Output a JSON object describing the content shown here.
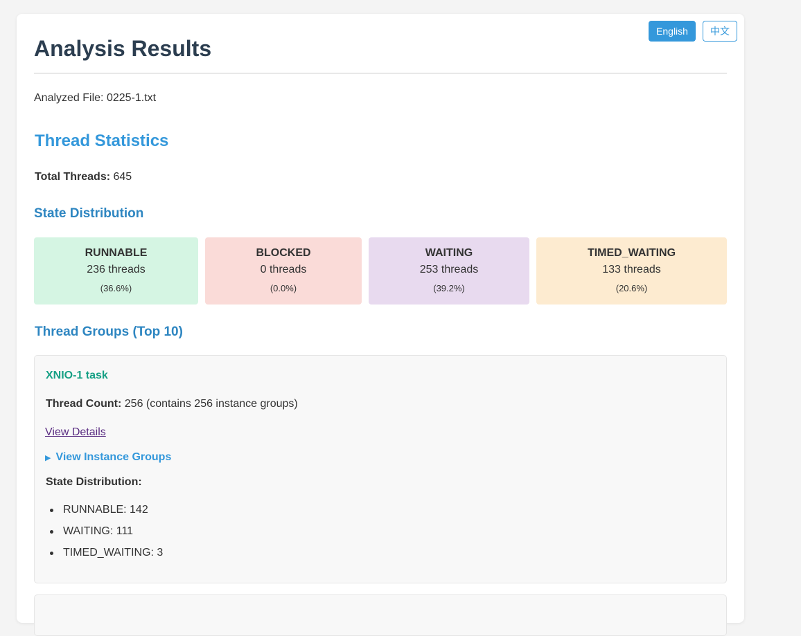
{
  "language": {
    "english": "English",
    "chinese": "中文"
  },
  "page": {
    "title": "Analysis Results",
    "analyzed_file": "Analyzed File: 0225-1.txt"
  },
  "statistics": {
    "heading": "Thread Statistics",
    "total_label": "Total Threads:",
    "total_value": "645"
  },
  "state_distribution": {
    "heading": "State Distribution",
    "states": [
      {
        "name": "RUNNABLE",
        "count": "236 threads",
        "pct": "(36.6%)",
        "color": "#d5f5e3"
      },
      {
        "name": "BLOCKED",
        "count": "0 threads",
        "pct": "(0.0%)",
        "color": "#fadbd8"
      },
      {
        "name": "WAITING",
        "count": "253 threads",
        "pct": "(39.2%)",
        "color": "#e8daef"
      },
      {
        "name": "TIMED_WAITING",
        "count": "133 threads",
        "pct": "(20.6%)",
        "color": "#fdebd0"
      }
    ]
  },
  "groups": {
    "heading": "Thread Groups (Top 10)",
    "items": [
      {
        "name": "XNIO-1 task",
        "count_label": "Thread Count:",
        "count_value": "256 (contains 256 instance groups)",
        "details_link": "View Details",
        "instances_toggle": "View Instance Groups",
        "dist_label": "State Distribution:",
        "dist": [
          "RUNNABLE: 142",
          "WAITING: 111",
          "TIMED_WAITING: 3"
        ]
      }
    ]
  }
}
